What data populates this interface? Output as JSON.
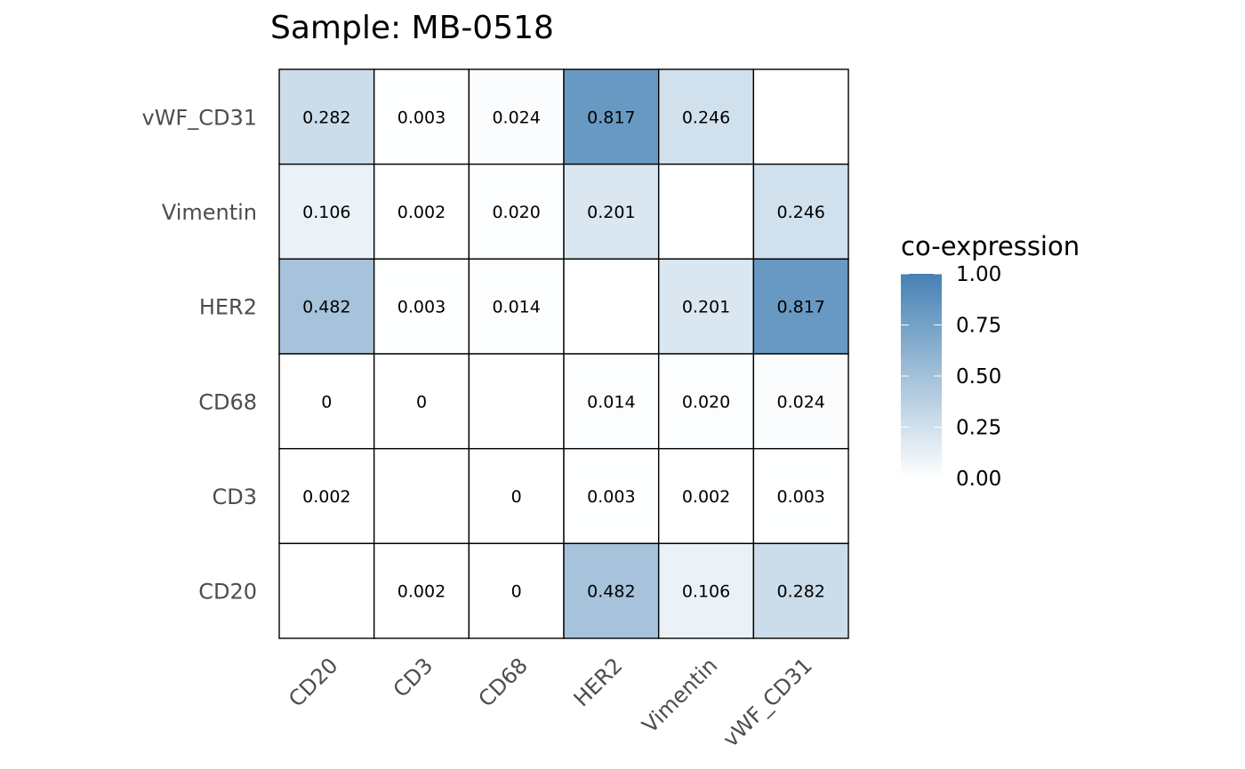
{
  "chart_data": {
    "type": "heatmap",
    "title": "Sample: MB-0518",
    "xlabel": "",
    "ylabel": "",
    "x_categories": [
      "CD20",
      "CD3",
      "CD68",
      "HER2",
      "Vimentin",
      "vWF_CD31"
    ],
    "y_categories_top_to_bottom": [
      "vWF_CD31",
      "Vimentin",
      "HER2",
      "CD68",
      "CD3",
      "CD20"
    ],
    "rows": [
      {
        "y": "vWF_CD31",
        "values": [
          0.282,
          0.003,
          0.024,
          0.817,
          0.246,
          null
        ],
        "labels": [
          "0.282",
          "0.003",
          "0.024",
          "0.817",
          "0.246",
          ""
        ]
      },
      {
        "y": "Vimentin",
        "values": [
          0.106,
          0.002,
          0.02,
          0.201,
          null,
          0.246
        ],
        "labels": [
          "0.106",
          "0.002",
          "0.020",
          "0.201",
          "",
          "0.246"
        ]
      },
      {
        "y": "HER2",
        "values": [
          0.482,
          0.003,
          0.014,
          null,
          0.201,
          0.817
        ],
        "labels": [
          "0.482",
          "0.003",
          "0.014",
          "",
          "0.201",
          "0.817"
        ]
      },
      {
        "y": "CD68",
        "values": [
          0,
          0,
          null,
          0.014,
          0.02,
          0.024
        ],
        "labels": [
          "0",
          "0",
          "",
          "0.014",
          "0.020",
          "0.024"
        ]
      },
      {
        "y": "CD3",
        "values": [
          0.002,
          null,
          0,
          0.003,
          0.002,
          0.003
        ],
        "labels": [
          "0.002",
          "",
          "0",
          "0.003",
          "0.002",
          "0.003"
        ]
      },
      {
        "y": "CD20",
        "values": [
          null,
          0.002,
          0,
          0.482,
          0.106,
          0.282
        ],
        "labels": [
          "",
          "0.002",
          "0",
          "0.482",
          "0.106",
          "0.282"
        ]
      }
    ],
    "color_scale": {
      "low": "#ffffff",
      "high": "#4682b4",
      "range": [
        0,
        1
      ]
    },
    "legend": {
      "title": "co-expression",
      "ticks": [
        1.0,
        0.75,
        0.5,
        0.25,
        0.0
      ],
      "tick_labels": [
        "1.00",
        "0.75",
        "0.50",
        "0.25",
        "0.00"
      ],
      "placement": "right"
    },
    "grid": false
  }
}
